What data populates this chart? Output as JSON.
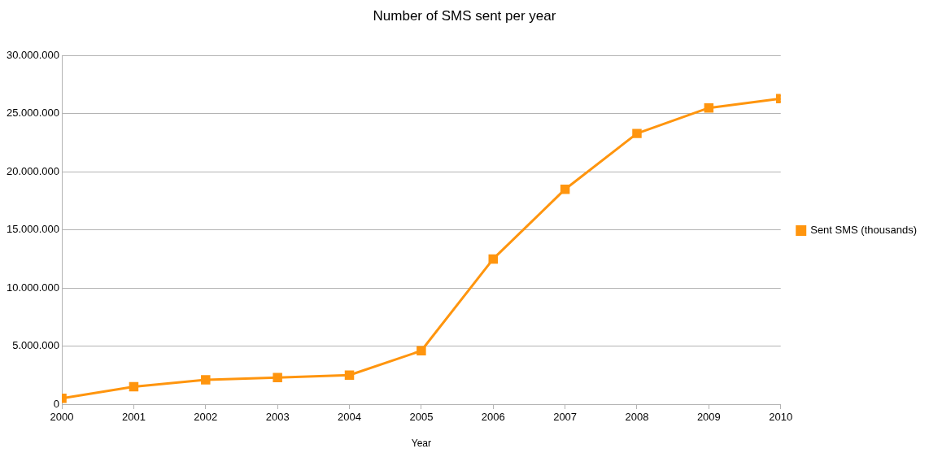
{
  "chart_data": {
    "type": "line",
    "title": "Number of SMS sent per year",
    "xlabel": "Year",
    "x": [
      2000,
      2001,
      2002,
      2003,
      2004,
      2005,
      2006,
      2007,
      2008,
      2009,
      2010
    ],
    "series": [
      {
        "name": "Sent SMS (thousands)",
        "color": "#ff950e",
        "values": [
          500000,
          1500000,
          2100000,
          2300000,
          2500000,
          4600000,
          12500000,
          18500000,
          23300000,
          25500000,
          26300000
        ]
      }
    ],
    "xlim": [
      2000,
      2010
    ],
    "xticks": [
      2000,
      2001,
      2002,
      2003,
      2004,
      2005,
      2006,
      2007,
      2008,
      2009,
      2010
    ],
    "ylim": [
      0,
      30000000
    ],
    "yticks": [
      {
        "value": 0,
        "label": "0"
      },
      {
        "value": 5000000,
        "label": "5.000.000"
      },
      {
        "value": 10000000,
        "label": "10.000.000"
      },
      {
        "value": 15000000,
        "label": "15.000.000"
      },
      {
        "value": 20000000,
        "label": "20.000.000"
      },
      {
        "value": 25000000,
        "label": "25.000.000"
      },
      {
        "value": 30000000,
        "label": "30.000.000"
      }
    ],
    "grid": "y",
    "legend": "right",
    "marker": "square",
    "line_style": "solid"
  }
}
